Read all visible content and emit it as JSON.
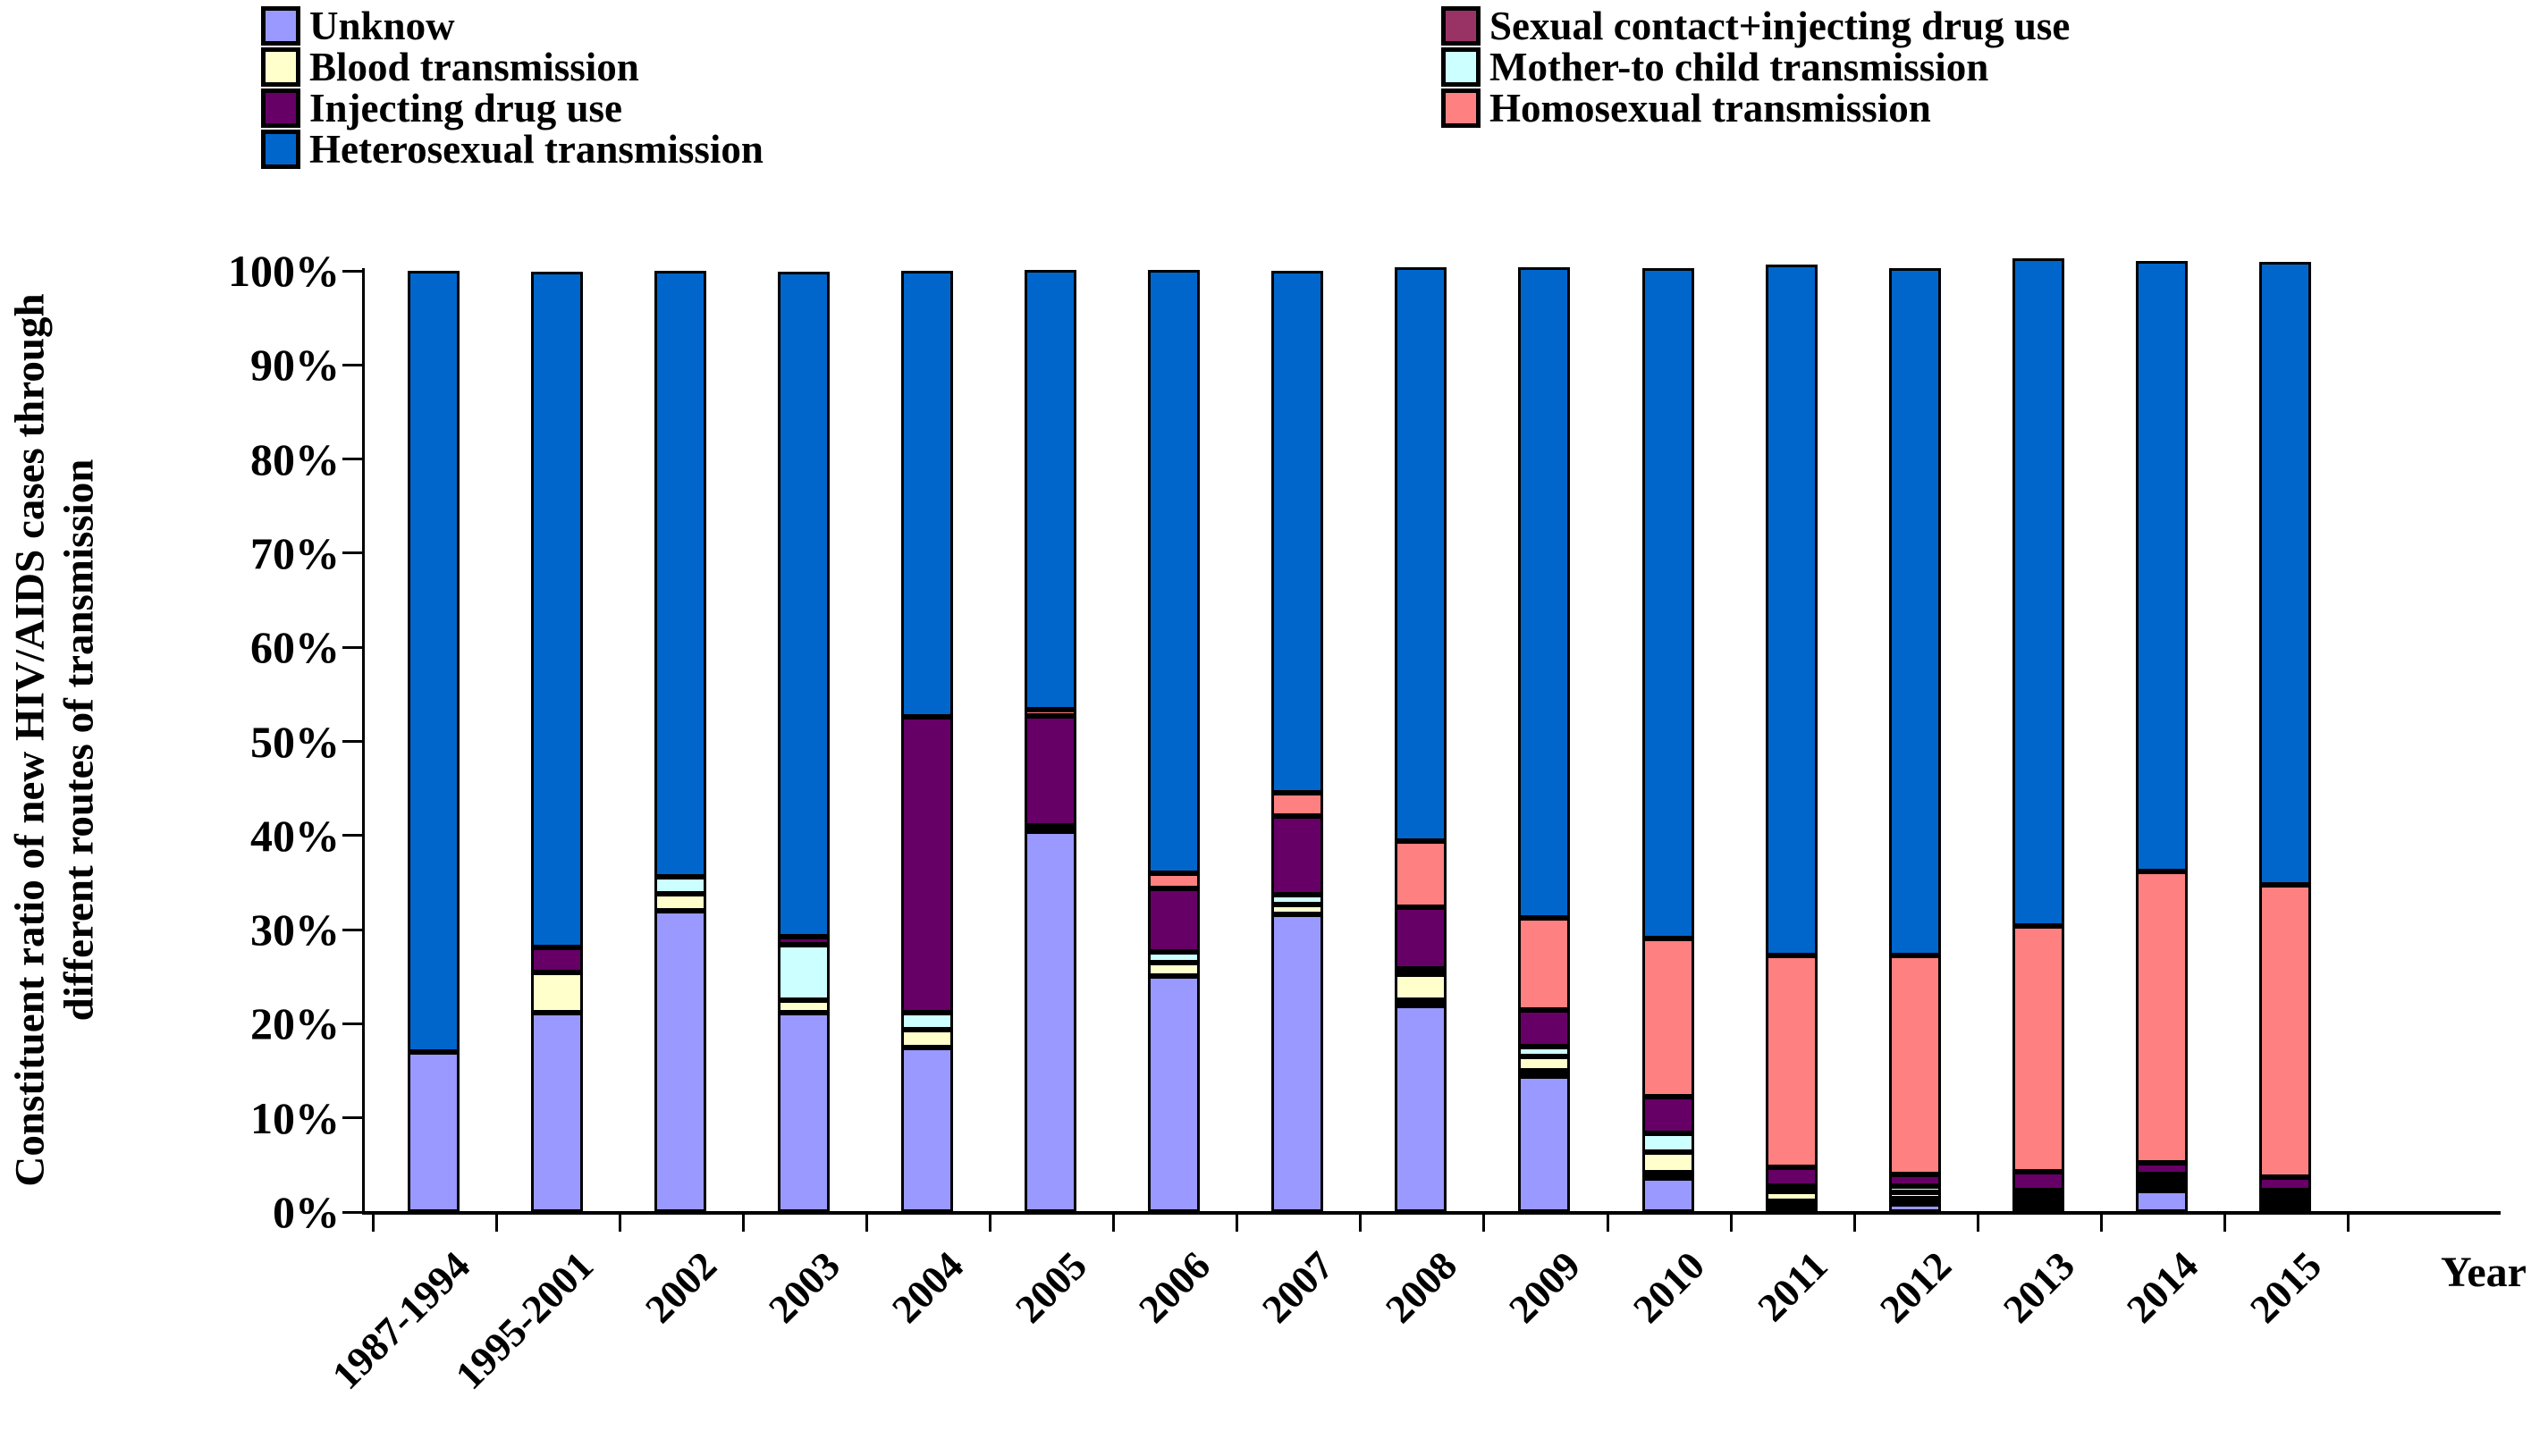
{
  "y_axis_title_line1": "Constituent ratio of new HIV/AIDS cases through",
  "y_axis_title_line2": "different routes of transmission",
  "x_axis_title": "Year",
  "y_ticks": [
    "100%",
    "90%",
    "80%",
    "70%",
    "60%",
    "50%",
    "40%",
    "30%",
    "20%",
    "10%",
    "0%"
  ],
  "legend": {
    "columns": [
      {
        "items": [
          {
            "label": "Unknow",
            "color": "#9999FF"
          },
          {
            "label": "Blood transmission",
            "color": "#FFFFCC"
          },
          {
            "label": "Injecting drug use",
            "color": "#660066"
          },
          {
            "label": "Heterosexual transmission",
            "color": "#0066CC"
          }
        ]
      },
      {
        "items": [
          {
            "label": "Sexual contact+injecting drug use",
            "color": "#993366"
          },
          {
            "label": "Mother-to child transmission",
            "color": "#CCFFFF"
          },
          {
            "label": "Homosexual transmission",
            "color": "#FF8080"
          }
        ]
      }
    ]
  },
  "chart_data": {
    "type": "bar",
    "stacked": true,
    "units": "percent",
    "title": "",
    "xlabel": "Year",
    "ylabel": "Constituent ratio of new HIV/AIDS cases through different routes of transmission",
    "ylim": [
      0,
      100
    ],
    "grid": false,
    "legend_position": "top",
    "categories": [
      "1987-1994",
      "1995-2001",
      "2002",
      "2003",
      "2004",
      "2005",
      "2006",
      "2007",
      "2008",
      "2009",
      "2010",
      "2011",
      "2012",
      "2013",
      "2014",
      "2015"
    ],
    "series": [
      {
        "name": "Unknow",
        "color": "#9999FF",
        "values": [
          17.0,
          21.2,
          32.0,
          21.2,
          17.5,
          40.5,
          25.1,
          31.6,
          21.9,
          14.4,
          3.6,
          0.4,
          0.9,
          0.2,
          2.3,
          0.5
        ]
      },
      {
        "name": "Sexual contact+injecting drug use",
        "color": "#993366",
        "values": [
          0,
          0,
          0,
          0,
          0,
          0,
          0,
          0,
          0.3,
          0.3,
          0.3,
          0.2,
          0.2,
          0.1,
          0.2,
          0.1
        ]
      },
      {
        "name": "Blood transmission",
        "color": "#FFFFCC",
        "values": [
          0,
          4.3,
          1.8,
          1.3,
          1.9,
          0.4,
          1.4,
          1.0,
          2.8,
          1.5,
          2.2,
          1.0,
          0.7,
          0.2,
          0.2,
          0.2
        ]
      },
      {
        "name": "Mother-to child transmission",
        "color": "#CCFFFF",
        "values": [
          0,
          0,
          1.8,
          5.9,
          1.8,
          0,
          1.1,
          1.0,
          0.4,
          1.0,
          2.0,
          0.5,
          0.7,
          0.5,
          0.2,
          0.5
        ]
      },
      {
        "name": "Injecting drug use",
        "color": "#660066",
        "values": [
          0,
          2.7,
          0,
          0.9,
          31.4,
          11.7,
          6.7,
          8.4,
          6.6,
          3.9,
          3.9,
          2.0,
          1.2,
          2.0,
          1.2,
          1.4
        ]
      },
      {
        "name": "Homosexual transmission",
        "color": "#FF8080",
        "values": [
          0,
          0,
          0,
          0,
          0,
          0.7,
          1.6,
          2.5,
          7.0,
          9.8,
          16.8,
          22.5,
          23.3,
          26.1,
          31.0,
          31.1
        ]
      },
      {
        "name": "Heterosexual transmission",
        "color": "#0066CC",
        "values": [
          83.0,
          71.8,
          64.4,
          70.7,
          47.4,
          46.7,
          64.1,
          55.5,
          61.0,
          69.1,
          71.2,
          73.4,
          73.0,
          70.9,
          64.9,
          66.2
        ]
      }
    ]
  }
}
